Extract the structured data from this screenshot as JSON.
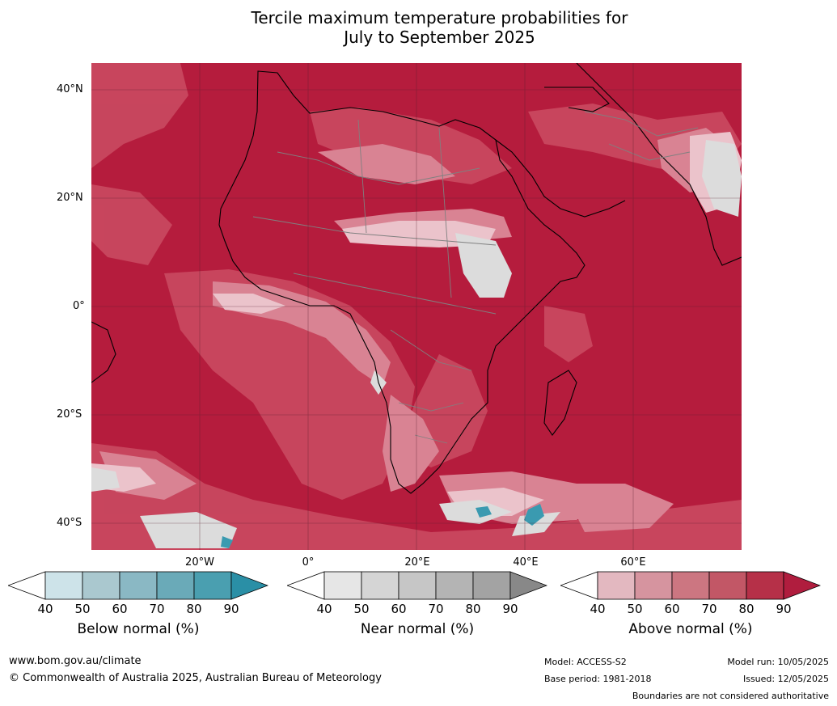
{
  "title": {
    "line1": "Tercile maximum temperature probabilities for",
    "line2": "July to September 2025"
  },
  "lat_labels": [
    "40°N",
    "20°N",
    "0°",
    "20°S",
    "40°S"
  ],
  "lon_labels": [
    "20°W",
    "0°",
    "20°E",
    "40°E",
    "60°E"
  ],
  "colorbars": [
    {
      "title": "Below normal (%)",
      "ticks": [
        "40",
        "50",
        "60",
        "70",
        "80",
        "90"
      ],
      "colors": [
        "#ffffff",
        "#cde3e9",
        "#aac8cf",
        "#8ab8c4",
        "#6aaab8",
        "#4a9fb0",
        "#2a8fa6"
      ]
    },
    {
      "title": "Near normal (%)",
      "ticks": [
        "40",
        "50",
        "60",
        "70",
        "80",
        "90"
      ],
      "colors": [
        "#ffffff",
        "#e6e6e6",
        "#d5d5d5",
        "#c6c6c6",
        "#b4b4b4",
        "#a3a3a3",
        "#888888"
      ]
    },
    {
      "title": "Above normal (%)",
      "ticks": [
        "40",
        "50",
        "60",
        "70",
        "80",
        "90"
      ],
      "colors": [
        "#ffffff",
        "#e3b8c0",
        "#d6949f",
        "#cc7681",
        "#c25766",
        "#b63048",
        "#b01d3e"
      ]
    }
  ],
  "map_colors": {
    "dominant": "#b51c3d",
    "mid": "#c9485f",
    "light": "#d98393",
    "pale": "#ebc3cb",
    "near": "#dcdcdc",
    "below": "#3a9ab0",
    "grid": "#5a2030"
  },
  "footer": {
    "url": "www.bom.gov.au/climate",
    "copyright": "© Commonwealth of Australia 2025, Australian Bureau of Meteorology",
    "model": "Model: ACCESS-S2",
    "base_period": "Base period: 1981-2018",
    "model_run": "Model run: 10/05/2025",
    "issued": "Issued: 12/05/2025",
    "disclaimer": "Boundaries are not considered authoritative"
  }
}
